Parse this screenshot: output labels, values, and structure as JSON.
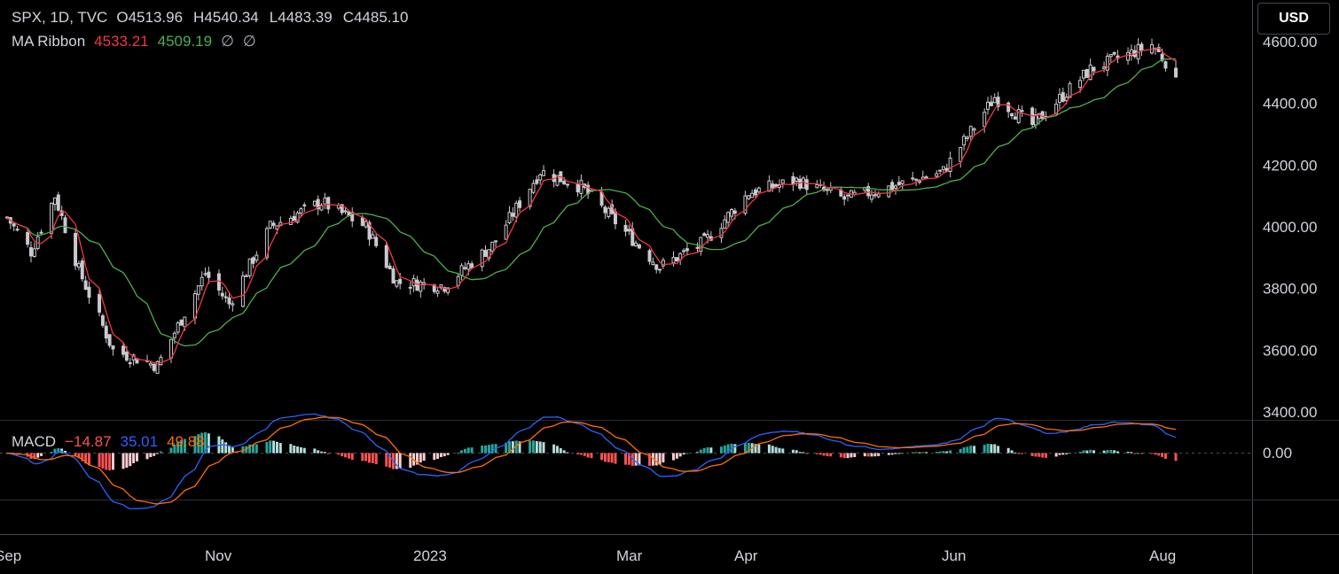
{
  "legend": {
    "symbol": "SPX, 1D, TVC",
    "o_label": "O",
    "o_value": "4513.96",
    "h_label": "H",
    "h_value": "4540.34",
    "l_label": "L",
    "l_value": "4483.39",
    "c_label": "C",
    "c_value": "4485.10",
    "ma_name": "MA Ribbon",
    "ma1_value": "4533.21",
    "ma2_value": "4509.19",
    "ma3_value": "∅",
    "ma4_value": "∅",
    "macd_name": "MACD",
    "macd_hist_value": "−14.87",
    "macd_line_value": "35.01",
    "macd_signal_value": "49.88"
  },
  "currency_button": "USD",
  "colors": {
    "background": "#000000",
    "candle": "#c9c9cf",
    "ma_fast": "#f23645",
    "ma_slow": "#4caf50",
    "macd_line": "#2962ff",
    "signal_line": "#ff6d00",
    "hist_up_strong": "#26a69a",
    "hist_up_weak": "#b2dfdb",
    "hist_down_strong": "#ff5252",
    "hist_down_weak": "#ffcdd2"
  },
  "chart_data": {
    "type": "candlestick",
    "price_axis": {
      "ticks": [
        3400,
        3600,
        3800,
        4000,
        4200,
        4400,
        4600
      ],
      "tick_labels": [
        "3400.00",
        "3600.00",
        "3800.00",
        "4000.00",
        "4200.00",
        "4400.00",
        "4600.00"
      ],
      "range": [
        3390,
        4610
      ]
    },
    "macd_axis": {
      "zero_label": "0.00"
    },
    "x_labels": [
      "Sep",
      "Nov",
      "2023",
      "Mar",
      "Apr",
      "Jun",
      "Aug"
    ],
    "price_path": [
      [
        "2022-08-30",
        4030
      ],
      [
        "2022-09-06",
        3920
      ],
      [
        "2022-09-13",
        4100
      ],
      [
        "2022-09-20",
        3860
      ],
      [
        "2022-09-30",
        3600
      ],
      [
        "2022-10-13",
        3550
      ],
      [
        "2022-10-27",
        3850
      ],
      [
        "2022-11-03",
        3750
      ],
      [
        "2022-11-15",
        4000
      ],
      [
        "2022-11-30",
        4080
      ],
      [
        "2022-12-13",
        4000
      ],
      [
        "2022-12-22",
        3820
      ],
      [
        "2023-01-05",
        3810
      ],
      [
        "2023-01-19",
        3940
      ],
      [
        "2023-02-02",
        4180
      ],
      [
        "2023-02-14",
        4130
      ],
      [
        "2023-03-01",
        3960
      ],
      [
        "2023-03-09",
        3870
      ],
      [
        "2023-03-22",
        3950
      ],
      [
        "2023-04-04",
        4110
      ],
      [
        "2023-04-18",
        4150
      ],
      [
        "2023-05-02",
        4090
      ],
      [
        "2023-05-16",
        4130
      ],
      [
        "2023-05-31",
        4180
      ],
      [
        "2023-06-15",
        4420
      ],
      [
        "2023-06-26",
        4330
      ],
      [
        "2023-07-13",
        4510
      ],
      [
        "2023-07-31",
        4590
      ],
      [
        "2023-08-07",
        4495
      ]
    ],
    "last_bar": {
      "open": 4513.96,
      "high": 4540.34,
      "low": 4483.39,
      "close": 4485.1
    },
    "ma_ribbon": {
      "ma1": 4533.21,
      "ma2": 4509.19
    },
    "macd": {
      "histogram": -14.87,
      "macd": 35.01,
      "signal": 49.88
    }
  }
}
